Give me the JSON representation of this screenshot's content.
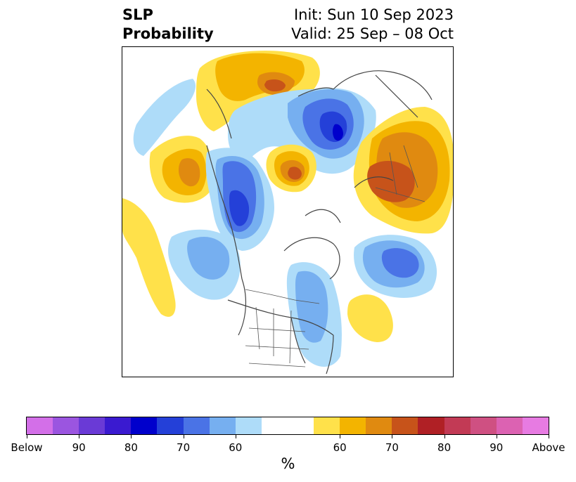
{
  "title": {
    "left_line1": "SLP",
    "left_line2": "Probability",
    "right_line1": "Init: Sun 10 Sep 2023",
    "right_line2": "Valid: 25 Sep – 08 Oct"
  },
  "colorbar": {
    "colors": [
      "#d36fe8",
      "#9b55e0",
      "#6a3ad6",
      "#3a1ad0",
      "#0000cc",
      "#2440d8",
      "#4a73e6",
      "#76aff0",
      "#aedcf9",
      "#ffffff",
      "#ffffff",
      "#ffe14a",
      "#f3b400",
      "#e08a10",
      "#c7531a",
      "#b02025",
      "#c23a55",
      "#cf5082",
      "#dc62b2",
      "#e77be2"
    ],
    "tick_labels": [
      "Below",
      "90",
      "80",
      "70",
      "60",
      "60",
      "70",
      "80",
      "90",
      "Above"
    ],
    "unit": "%"
  },
  "map": {
    "description_colors": {
      "below_light": "#aedcf9",
      "below_mid": "#76aff0",
      "below_med": "#4a73e6",
      "below_strong": "#2440d8",
      "below_max": "#0000cc",
      "above_light": "#ffe14a",
      "above_mid": "#f3b400",
      "above_med": "#e08a10",
      "above_strong": "#c7531a"
    }
  }
}
